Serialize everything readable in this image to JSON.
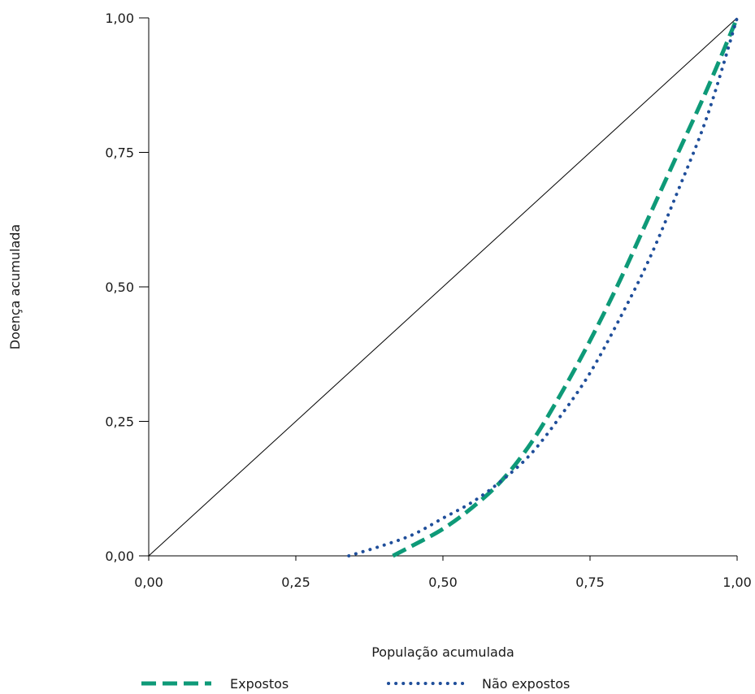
{
  "chart_data": {
    "type": "line",
    "xlabel": "População acumulada",
    "ylabel": "Doença acumulada",
    "xlim": [
      0,
      1
    ],
    "ylim": [
      0,
      1
    ],
    "xticks": [
      "0,00",
      "0,25",
      "0,50",
      "0,75",
      "1,00"
    ],
    "yticks": [
      "0,00",
      "0,25",
      "0,50",
      "0,75",
      "1,00"
    ],
    "grid": false,
    "legend_position": "bottom",
    "reference_line": {
      "x": [
        0,
        1
      ],
      "y": [
        0,
        1
      ],
      "color": "#000000"
    },
    "series": [
      {
        "name": "Expostos",
        "style": "dashed",
        "color": "#0e9a78",
        "x": [
          0.415,
          0.45,
          0.5,
          0.55,
          0.6,
          0.65,
          0.7,
          0.75,
          0.8,
          0.85,
          0.9,
          0.95,
          1.0
        ],
        "y": [
          0.0,
          0.02,
          0.05,
          0.09,
          0.14,
          0.21,
          0.3,
          0.4,
          0.51,
          0.63,
          0.75,
          0.87,
          1.0
        ]
      },
      {
        "name": "Não expostos",
        "style": "dotted",
        "color": "#1f4e9a",
        "x": [
          0.34,
          0.4,
          0.45,
          0.5,
          0.55,
          0.6,
          0.65,
          0.7,
          0.75,
          0.8,
          0.85,
          0.9,
          0.95,
          1.0
        ],
        "y": [
          0.0,
          0.02,
          0.04,
          0.07,
          0.1,
          0.14,
          0.19,
          0.26,
          0.34,
          0.44,
          0.55,
          0.68,
          0.82,
          1.0
        ]
      }
    ]
  }
}
